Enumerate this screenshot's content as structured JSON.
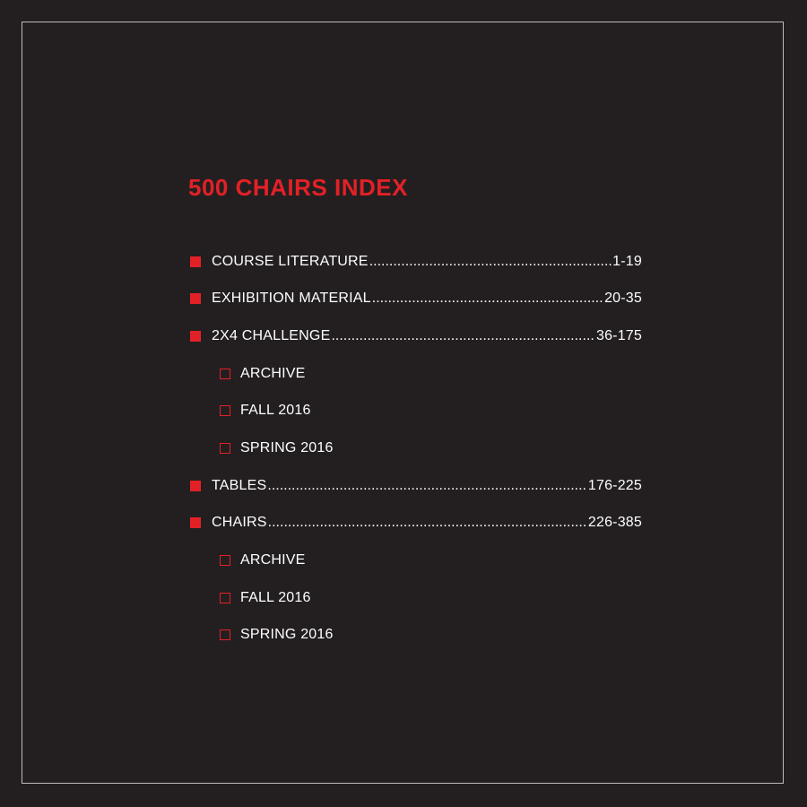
{
  "colors": {
    "background": "#231f20",
    "accent": "#e22127",
    "text": "#ffffff",
    "frame": "#bdbbbb"
  },
  "title": "500 CHAIRS INDEX",
  "entries": [
    {
      "label": "COURSE LITERATURE",
      "pages": "1-19",
      "level": "main",
      "icon": "filled-square-bullet-icon"
    },
    {
      "label": "EXHIBITION MATERIAL",
      "pages": "20-35",
      "level": "main",
      "icon": "filled-square-bullet-icon"
    },
    {
      "label": "2X4 CHALLENGE",
      "pages": "36-175",
      "level": "main",
      "icon": "filled-square-bullet-icon"
    },
    {
      "label": "ARCHIVE",
      "level": "sub",
      "icon": "hollow-square-bullet-icon"
    },
    {
      "label": "FALL 2016",
      "level": "sub",
      "icon": "hollow-square-bullet-icon"
    },
    {
      "label": "SPRING 2016",
      "level": "sub",
      "icon": "hollow-square-bullet-icon"
    },
    {
      "label": "TABLES",
      "pages": "176-225",
      "level": "main",
      "icon": "filled-square-bullet-icon"
    },
    {
      "label": "CHAIRS",
      "pages": "226-385",
      "level": "main",
      "icon": "filled-square-bullet-icon"
    },
    {
      "label": "ARCHIVE",
      "level": "sub",
      "icon": "hollow-square-bullet-icon"
    },
    {
      "label": "FALL 2016",
      "level": "sub",
      "icon": "hollow-square-bullet-icon"
    },
    {
      "label": "SPRING 2016",
      "level": "sub",
      "icon": "hollow-square-bullet-icon"
    }
  ]
}
